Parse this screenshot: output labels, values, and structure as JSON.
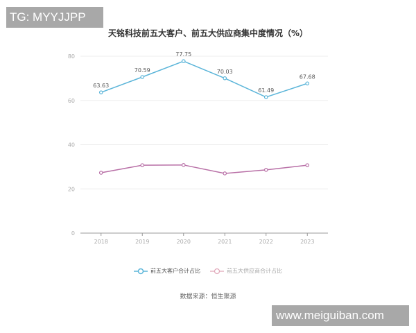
{
  "watermarks": {
    "top_left": "TG: MYYJJPP",
    "bottom_right": "www.meiguiban.com"
  },
  "source_note": "数据来源：恒生聚源",
  "chart_data": {
    "type": "line",
    "title": "天铭科技前五大客户、前五大供应商集中度情况（%）",
    "xlabel": "",
    "ylabel": "",
    "categories": [
      "2018",
      "2019",
      "2020",
      "2021",
      "2022",
      "2023"
    ],
    "ylim": [
      0,
      80
    ],
    "yticks": [
      0,
      20,
      40,
      60,
      80
    ],
    "grid": true,
    "legend_position": "bottom",
    "series": [
      {
        "name": "前五大客户合计占比",
        "color": "#5bb5d9",
        "values": [
          63.63,
          70.59,
          77.75,
          70.03,
          61.49,
          67.68
        ],
        "labels_shown": true
      },
      {
        "name": "前五大供应商合计占比",
        "color": "#b86fa6",
        "values": [
          27.3,
          30.7,
          30.8,
          27.0,
          28.6,
          30.7
        ],
        "labels_shown": false
      }
    ]
  }
}
